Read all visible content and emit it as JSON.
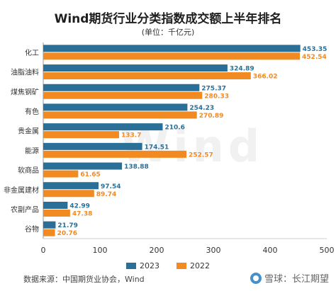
{
  "header": {
    "title": "Wind期货行业分类指数成交额上半年排名",
    "subtitle": "(单位：千亿元)"
  },
  "footer": {
    "source": "数据来源：中国期货业协会，Wind",
    "brand": "雪球：长江期望"
  },
  "watermark": "Wind",
  "colors": {
    "series_2023": "#2a6f97",
    "series_2022": "#f28a22"
  },
  "chart_data": {
    "type": "bar",
    "orientation": "horizontal",
    "categories": [
      "化工",
      "油脂油料",
      "煤焦钢矿",
      "有色",
      "贵金属",
      "能源",
      "软商品",
      "非金属建材",
      "农副产品",
      "谷物"
    ],
    "series": [
      {
        "name": "2023",
        "values": [
          453.35,
          324.89,
          275.37,
          254.23,
          210.6,
          174.51,
          138.88,
          97.54,
          42.99,
          21.79
        ]
      },
      {
        "name": "2022",
        "values": [
          452.54,
          366.02,
          280.33,
          270.89,
          133.7,
          252.57,
          61.65,
          89.74,
          47.38,
          20.76
        ]
      }
    ],
    "data_labels_2023": [
      "453.35",
      "324.89",
      "275.37",
      "254.23",
      "210.6",
      "174.51",
      "138.88",
      "97.54",
      "42.99",
      "21.79"
    ],
    "data_labels_2022": [
      "452.54",
      "366.02",
      "280.33",
      "270.89",
      "133.7",
      "252.57",
      "61.65",
      "89.74",
      "47.38",
      "20.76"
    ],
    "xlim": [
      0,
      500
    ],
    "xticks": [
      "0",
      "100",
      "200",
      "300",
      "400",
      "500"
    ],
    "xlabel": "",
    "ylabel": "",
    "grid": false,
    "legend_position": "bottom"
  }
}
